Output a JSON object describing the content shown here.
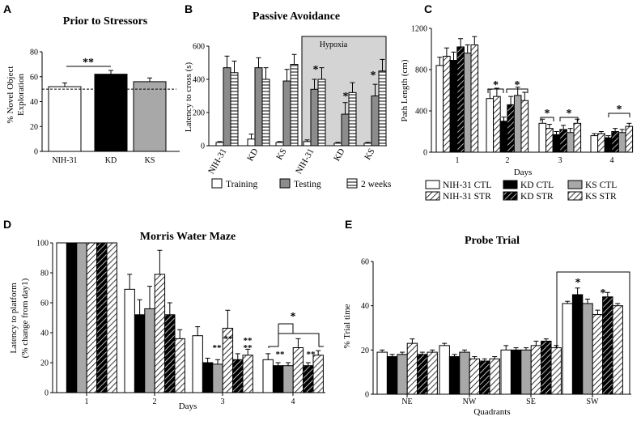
{
  "chart_data": [
    {
      "panel": "A",
      "type": "bar",
      "title": "Prior to Stressors",
      "ylabel_lines": [
        "% Novel Object",
        "Exploration"
      ],
      "ylim": [
        0,
        80
      ],
      "yticks": [
        0,
        20,
        40,
        60,
        80
      ],
      "categories": [
        "NIH-31",
        "KD",
        "KS"
      ],
      "values": [
        52,
        62,
        56
      ],
      "errors": [
        3,
        3,
        3
      ],
      "fills": [
        "#ffffff",
        "#000000",
        "#a8a8a8"
      ],
      "reference_line": 50,
      "annotation": "**"
    },
    {
      "panel": "B",
      "type": "bar",
      "title": "Passive Avoidance",
      "ylabel": "Latency to cross (s)",
      "ylim": [
        0,
        600
      ],
      "yticks": [
        0,
        200,
        400,
        600
      ],
      "box_label": "Hypoxia",
      "categories": [
        "NIH-31",
        "KD",
        "KS",
        "NIH-31",
        "KD",
        "KS"
      ],
      "series": [
        {
          "name": "Training",
          "values": [
            20,
            40,
            20,
            25,
            15,
            15
          ],
          "errors": [
            5,
            30,
            5,
            10,
            5,
            5
          ]
        },
        {
          "name": "Testing",
          "values": [
            470,
            470,
            390,
            340,
            190,
            300
          ],
          "errors": [
            70,
            60,
            70,
            60,
            70,
            70
          ]
        },
        {
          "name": "2 weeks",
          "values": [
            440,
            400,
            490,
            400,
            320,
            450
          ],
          "errors": [
            70,
            70,
            60,
            70,
            60,
            70
          ]
        }
      ],
      "annotations": [
        "*",
        "*",
        "*"
      ]
    },
    {
      "panel": "C",
      "type": "bar",
      "ylabel": "Path Length (cm)",
      "xlabel": "Days",
      "ylim": [
        0,
        1200
      ],
      "yticks": [
        0,
        400,
        800,
        1200
      ],
      "categories": [
        "1",
        "2",
        "3",
        "4"
      ],
      "series": [
        {
          "name": "NIH-31 CTL",
          "values": [
            840,
            520,
            280,
            160
          ],
          "errors": [
            80,
            90,
            40,
            20
          ]
        },
        {
          "name": "NIH-31 STR",
          "values": [
            930,
            540,
            230,
            180
          ],
          "errors": [
            80,
            80,
            40,
            20
          ]
        },
        {
          "name": "KD CTL",
          "values": [
            890,
            300,
            170,
            140
          ],
          "errors": [
            80,
            40,
            30,
            20
          ]
        },
        {
          "name": "KD STR",
          "values": [
            1020,
            460,
            220,
            200
          ],
          "errors": [
            80,
            80,
            40,
            30
          ]
        },
        {
          "name": "KS CTL",
          "values": [
            960,
            550,
            190,
            190
          ],
          "errors": [
            80,
            80,
            40,
            30
          ]
        },
        {
          "name": "KS STR",
          "values": [
            1040,
            500,
            280,
            250
          ],
          "errors": [
            80,
            80,
            40,
            30
          ]
        }
      ],
      "annotations": [
        "*",
        "*",
        "*",
        "*",
        "*"
      ]
    },
    {
      "panel": "D",
      "type": "bar",
      "title": "Morris Water Maze",
      "ylabel_lines": [
        "Latency to platform",
        "(% change from day1)"
      ],
      "xlabel": "Days",
      "ylim": [
        0,
        100
      ],
      "yticks": [
        0,
        20,
        40,
        60,
        80,
        100
      ],
      "categories": [
        "1",
        "2",
        "3",
        "4"
      ],
      "series": [
        {
          "name": "NIH-31 CTL",
          "values": [
            100,
            69,
            38,
            22
          ],
          "errors": [
            0,
            10,
            6,
            4
          ]
        },
        {
          "name": "KD CTL",
          "values": [
            100,
            52,
            20,
            18
          ],
          "errors": [
            0,
            10,
            3,
            2
          ]
        },
        {
          "name": "KS CTL",
          "values": [
            100,
            56,
            19,
            18
          ],
          "errors": [
            0,
            15,
            3,
            2
          ]
        },
        {
          "name": "NIH-31 STR",
          "values": [
            100,
            79,
            43,
            30
          ],
          "errors": [
            0,
            16,
            12,
            6
          ]
        },
        {
          "name": "KD STR",
          "values": [
            100,
            52,
            22,
            18
          ],
          "errors": [
            0,
            8,
            4,
            2
          ]
        },
        {
          "name": "KS STR",
          "values": [
            100,
            36,
            25,
            25
          ],
          "errors": [
            0,
            6,
            4,
            3
          ]
        }
      ],
      "annotations": [
        "**",
        "**",
        "**",
        "**",
        "**",
        "**",
        "*"
      ]
    },
    {
      "panel": "E",
      "type": "bar",
      "title": "Probe Trial",
      "ylabel": "% Trial time",
      "xlabel": "Quadrants",
      "ylim": [
        0,
        60
      ],
      "yticks": [
        0,
        20,
        40,
        60
      ],
      "categories": [
        "NE",
        "NW",
        "SE",
        "SW"
      ],
      "series": [
        {
          "name": "NIH-31 CTL",
          "values": [
            19,
            22,
            20,
            41
          ],
          "errors": [
            1,
            1,
            2,
            1
          ]
        },
        {
          "name": "KD CTL",
          "values": [
            17,
            17,
            20,
            45
          ],
          "errors": [
            1,
            1,
            1,
            3
          ]
        },
        {
          "name": "KS CTL",
          "values": [
            18,
            19,
            20,
            41
          ],
          "errors": [
            1,
            1,
            1,
            2
          ]
        },
        {
          "name": "NIH-31 STR",
          "values": [
            23,
            16,
            22,
            36
          ],
          "errors": [
            2,
            1,
            2,
            2
          ]
        },
        {
          "name": "KD STR",
          "values": [
            18,
            15,
            24,
            44
          ],
          "errors": [
            1,
            1,
            1,
            2
          ]
        },
        {
          "name": "KS STR",
          "values": [
            19,
            16,
            21,
            40
          ],
          "errors": [
            1,
            1,
            1,
            1
          ]
        }
      ],
      "annotations": [
        "*",
        "*"
      ]
    }
  ],
  "panel_letters": {
    "a": "A",
    "b": "B",
    "c": "C",
    "d": "D",
    "e": "E"
  },
  "legend_b": [
    "Training",
    "Testing",
    "2 weeks"
  ],
  "legend_c": [
    "NIH-31 CTL",
    "KD CTL",
    "KS CTL",
    "NIH-31 STR",
    "KD STR",
    "KS STR"
  ]
}
